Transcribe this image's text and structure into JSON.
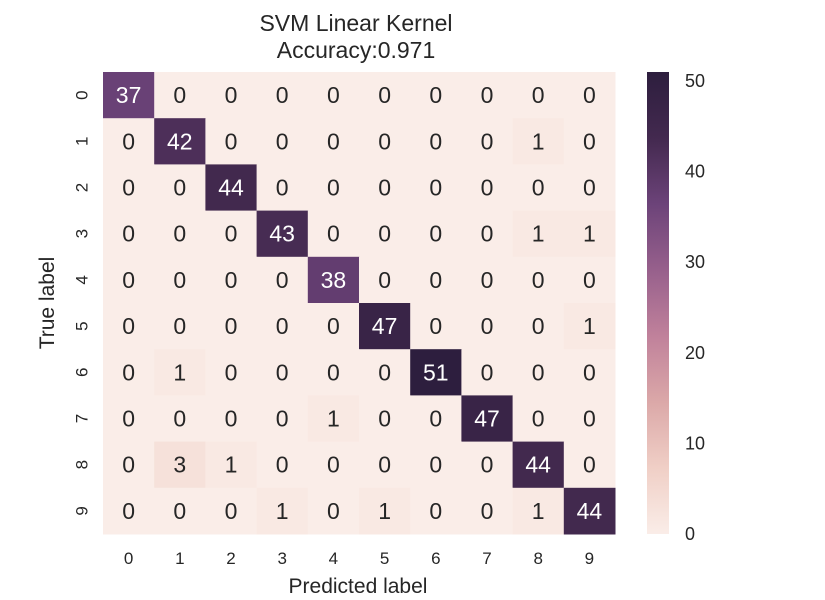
{
  "chart_data": {
    "type": "heatmap",
    "title": "SVM Linear Kernel",
    "subtitle": "Accuracy:0.971",
    "xlabel": "Predicted label",
    "ylabel": "True label",
    "x_labels": [
      "0",
      "1",
      "2",
      "3",
      "4",
      "5",
      "6",
      "7",
      "8",
      "9"
    ],
    "y_labels": [
      "0",
      "1",
      "2",
      "3",
      "4",
      "5",
      "6",
      "7",
      "8",
      "9"
    ],
    "matrix": [
      [
        37,
        0,
        0,
        0,
        0,
        0,
        0,
        0,
        0,
        0
      ],
      [
        0,
        42,
        0,
        0,
        0,
        0,
        0,
        0,
        1,
        0
      ],
      [
        0,
        0,
        44,
        0,
        0,
        0,
        0,
        0,
        0,
        0
      ],
      [
        0,
        0,
        0,
        43,
        0,
        0,
        0,
        0,
        1,
        1
      ],
      [
        0,
        0,
        0,
        0,
        38,
        0,
        0,
        0,
        0,
        0
      ],
      [
        0,
        0,
        0,
        0,
        0,
        47,
        0,
        0,
        0,
        1
      ],
      [
        0,
        1,
        0,
        0,
        0,
        0,
        51,
        0,
        0,
        0
      ],
      [
        0,
        0,
        0,
        0,
        1,
        0,
        0,
        47,
        0,
        0
      ],
      [
        0,
        3,
        1,
        0,
        0,
        0,
        0,
        0,
        44,
        0
      ],
      [
        0,
        0,
        0,
        1,
        0,
        1,
        0,
        0,
        1,
        44
      ]
    ],
    "vmin": 0,
    "vmax": 51,
    "colorbar": {
      "ticks": [
        0,
        10,
        20,
        30,
        40,
        50
      ]
    },
    "colormap": [
      "#faede8",
      "#f0cfc6",
      "#dba8a8",
      "#c0819b",
      "#97608c",
      "#6c4379",
      "#43294f",
      "#2d1e3e"
    ]
  }
}
